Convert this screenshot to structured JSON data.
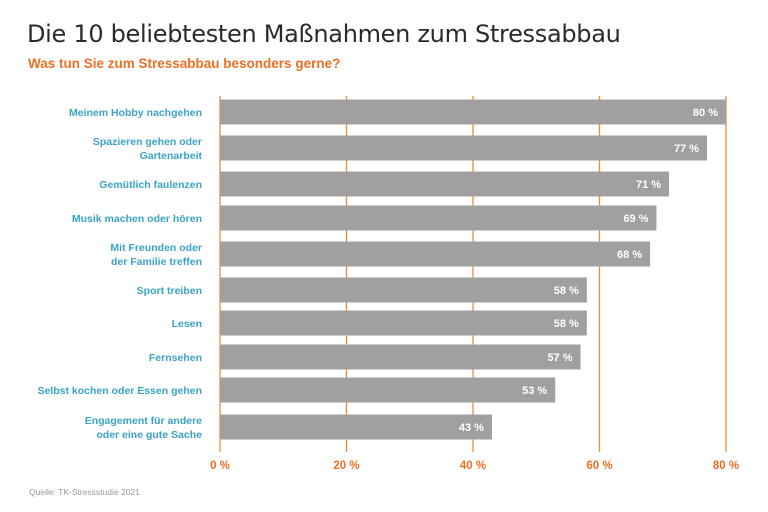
{
  "chart_data": {
    "type": "bar",
    "orientation": "horizontal",
    "title": "Die 10 beliebtesten Maßnahmen zum Stressabbau",
    "subtitle": "Was tun Sie zum Stressabbau besonders gerne?",
    "source": "Quelle: TK-Stressstudie 2021",
    "categories": [
      [
        "Meinem Hobby nachgehen"
      ],
      [
        "Spazieren gehen oder",
        "Gartenarbeit"
      ],
      [
        "Gemütlich faulenzen"
      ],
      [
        "Musik machen oder hören"
      ],
      [
        "Mit Freunden oder",
        "der Familie treffen"
      ],
      [
        "Sport treiben"
      ],
      [
        "Lesen"
      ],
      [
        "Fernsehen"
      ],
      [
        "Selbst kochen oder Essen gehen"
      ],
      [
        "Engagement für andere",
        "oder eine gute Sache"
      ]
    ],
    "values": [
      80,
      77,
      71,
      69,
      68,
      58,
      58,
      57,
      53,
      43
    ],
    "value_labels": [
      "80 %",
      "77 %",
      "71 %",
      "69 %",
      "68 %",
      "58 %",
      "58 %",
      "57 %",
      "53 %",
      "43 %"
    ],
    "xlim": [
      0,
      80
    ],
    "xticks": [
      0,
      20,
      40,
      60,
      80
    ],
    "xtick_labels": [
      "0 %",
      "20 %",
      "40 %",
      "60 %",
      "80 %"
    ],
    "grid": true,
    "colors": {
      "bar": "#a0a0a0",
      "grid": "#f0893c",
      "category_text": "#3aa3c6",
      "accent": "#ee6f22"
    }
  }
}
